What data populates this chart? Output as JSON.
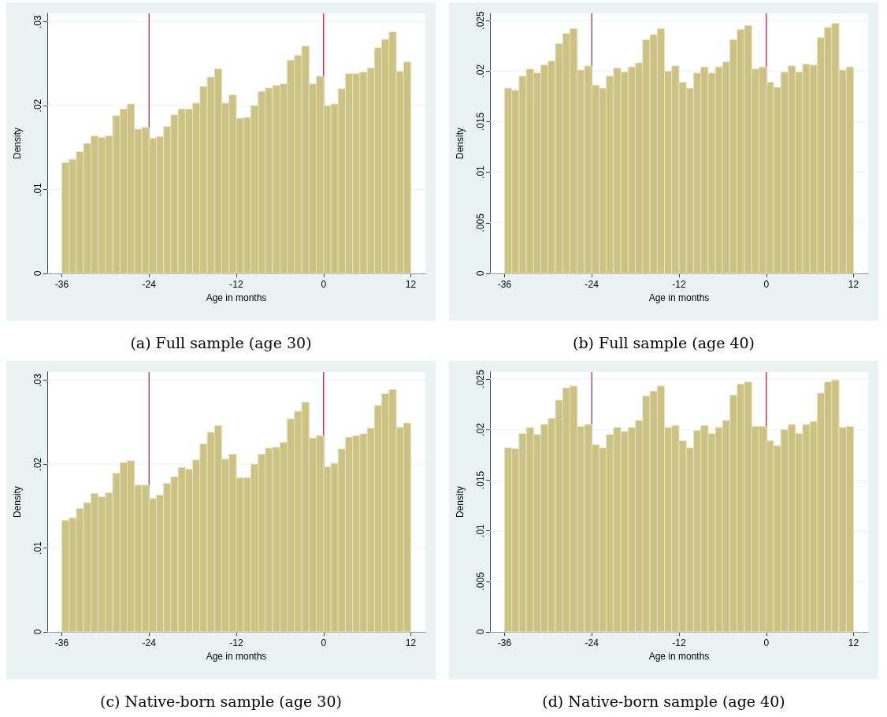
{
  "chart_data": [
    {
      "type": "histogram",
      "title": "(a) Full sample (age 30)",
      "xlabel": "Age in months",
      "ylabel": "Density",
      "color": "#ccc283",
      "grid": "y",
      "bins": [
        -36,
        -35,
        -34,
        -33,
        -32,
        -31,
        -30,
        -29,
        -28,
        -27,
        -26,
        -25,
        -24,
        -23,
        -22,
        -21,
        -20,
        -19,
        -18,
        -17,
        -16,
        -15,
        -14,
        -13,
        -12,
        -11,
        -10,
        -9,
        -8,
        -7,
        -6,
        -5,
        -4,
        -3,
        -2,
        -1,
        0,
        1,
        2,
        3,
        4,
        5,
        6,
        7,
        8,
        9,
        10,
        11,
        12
      ],
      "values": [
        0.0132,
        0.0136,
        0.0145,
        0.0155,
        0.0164,
        0.0162,
        0.0164,
        0.0188,
        0.0196,
        0.0202,
        0.0172,
        0.0174,
        0.0161,
        0.0163,
        0.0175,
        0.0189,
        0.0196,
        0.0196,
        0.0203,
        0.0223,
        0.0234,
        0.0244,
        0.0203,
        0.0213,
        0.0185,
        0.0186,
        0.02,
        0.0217,
        0.0221,
        0.0224,
        0.0226,
        0.0254,
        0.026,
        0.0271,
        0.0226,
        0.0235,
        0.02,
        0.0202,
        0.022,
        0.0238,
        0.0238,
        0.024,
        0.0245,
        0.0269,
        0.0279,
        0.0288,
        0.0241,
        0.0252
      ],
      "xlim": [
        -38,
        14
      ],
      "xticks": [
        -36,
        -24,
        -12,
        0,
        12
      ],
      "ylim": [
        0,
        0.031
      ],
      "yticks": [
        {
          "value": 0,
          "label": "0"
        },
        {
          "value": 0.01,
          "label": ".01"
        },
        {
          "value": 0.02,
          "label": ".02"
        },
        {
          "value": 0.03,
          "label": ".03"
        }
      ],
      "ref_lines": [
        {
          "axis": "x",
          "value": -24,
          "color": "#c8102e"
        },
        {
          "axis": "x",
          "value": 0,
          "color": "#c8102e"
        }
      ]
    },
    {
      "type": "histogram",
      "title": "(b) Full sample (age 40)",
      "xlabel": "Age in months",
      "ylabel": "Density",
      "color": "#ccc283",
      "grid": "y",
      "bins": [
        -36,
        -35,
        -34,
        -33,
        -32,
        -31,
        -30,
        -29,
        -28,
        -27,
        -26,
        -25,
        -24,
        -23,
        -22,
        -21,
        -20,
        -19,
        -18,
        -17,
        -16,
        -15,
        -14,
        -13,
        -12,
        -11,
        -10,
        -9,
        -8,
        -7,
        -6,
        -5,
        -4,
        -3,
        -2,
        -1,
        0,
        1,
        2,
        3,
        4,
        5,
        6,
        7,
        8,
        9,
        10,
        11,
        12
      ],
      "values": [
        0.0183,
        0.0181,
        0.0195,
        0.0202,
        0.0198,
        0.0206,
        0.021,
        0.0227,
        0.0237,
        0.0242,
        0.0201,
        0.0205,
        0.0186,
        0.0183,
        0.0195,
        0.0203,
        0.0199,
        0.0204,
        0.0208,
        0.0231,
        0.0236,
        0.0242,
        0.02,
        0.0205,
        0.0189,
        0.0183,
        0.0198,
        0.0204,
        0.0198,
        0.0204,
        0.0209,
        0.0231,
        0.0241,
        0.0245,
        0.0202,
        0.0204,
        0.0189,
        0.0184,
        0.0199,
        0.0205,
        0.0199,
        0.0207,
        0.0206,
        0.0233,
        0.0243,
        0.0247,
        0.0201,
        0.0204
      ],
      "xlim": [
        -38,
        14
      ],
      "xticks": [
        -36,
        -24,
        -12,
        0,
        12
      ],
      "ylim": [
        0,
        0.0257
      ],
      "yticks": [
        {
          "value": 0,
          "label": "0"
        },
        {
          "value": 0.005,
          "label": ".005"
        },
        {
          "value": 0.01,
          "label": ".01"
        },
        {
          "value": 0.015,
          "label": ".015"
        },
        {
          "value": 0.02,
          "label": ".02"
        },
        {
          "value": 0.025,
          "label": ".025"
        }
      ],
      "ref_lines": [
        {
          "axis": "x",
          "value": -24,
          "color": "#c8102e"
        },
        {
          "axis": "x",
          "value": 0,
          "color": "#c8102e"
        }
      ]
    },
    {
      "type": "histogram",
      "title": "(c) Native-born sample (age 30)",
      "xlabel": "Age in months",
      "ylabel": "Density",
      "color": "#ccc283",
      "grid": "y",
      "bins": [
        -36,
        -35,
        -34,
        -33,
        -32,
        -31,
        -30,
        -29,
        -28,
        -27,
        -26,
        -25,
        -24,
        -23,
        -22,
        -21,
        -20,
        -19,
        -18,
        -17,
        -16,
        -15,
        -14,
        -13,
        -12,
        -11,
        -10,
        -9,
        -8,
        -7,
        -6,
        -5,
        -4,
        -3,
        -2,
        -1,
        0,
        1,
        2,
        3,
        4,
        5,
        6,
        7,
        8,
        9,
        10,
        11,
        12
      ],
      "values": [
        0.0133,
        0.0136,
        0.0147,
        0.0154,
        0.0165,
        0.0161,
        0.0166,
        0.0189,
        0.0202,
        0.0204,
        0.0175,
        0.0175,
        0.0159,
        0.0163,
        0.0177,
        0.0185,
        0.0196,
        0.0194,
        0.0205,
        0.0224,
        0.0238,
        0.0246,
        0.0206,
        0.0212,
        0.0184,
        0.0184,
        0.02,
        0.0212,
        0.0219,
        0.022,
        0.0226,
        0.0254,
        0.0263,
        0.0274,
        0.0231,
        0.0234,
        0.0197,
        0.0201,
        0.0218,
        0.0232,
        0.0234,
        0.0236,
        0.0243,
        0.027,
        0.0284,
        0.0289,
        0.0244,
        0.0249
      ],
      "xlim": [
        -38,
        14
      ],
      "xticks": [
        -36,
        -24,
        -12,
        0,
        12
      ],
      "ylim": [
        0,
        0.031
      ],
      "yticks": [
        {
          "value": 0,
          "label": "0"
        },
        {
          "value": 0.01,
          "label": ".01"
        },
        {
          "value": 0.02,
          "label": ".02"
        },
        {
          "value": 0.03,
          "label": ".03"
        }
      ],
      "ref_lines": [
        {
          "axis": "x",
          "value": -24,
          "color": "#c8102e"
        },
        {
          "axis": "x",
          "value": 0,
          "color": "#c8102e"
        }
      ]
    },
    {
      "type": "histogram",
      "title": "(d) Native-born sample (age 40)",
      "xlabel": "Age in months",
      "ylabel": "Density",
      "color": "#ccc283",
      "grid": "y",
      "bins": [
        -36,
        -35,
        -34,
        -33,
        -32,
        -31,
        -30,
        -29,
        -28,
        -27,
        -26,
        -25,
        -24,
        -23,
        -22,
        -21,
        -20,
        -19,
        -18,
        -17,
        -16,
        -15,
        -14,
        -13,
        -12,
        -11,
        -10,
        -9,
        -8,
        -7,
        -6,
        -5,
        -4,
        -3,
        -2,
        -1,
        0,
        1,
        2,
        3,
        4,
        5,
        6,
        7,
        8,
        9,
        10,
        11,
        12
      ],
      "values": [
        0.0182,
        0.0181,
        0.0196,
        0.0202,
        0.0195,
        0.0205,
        0.0211,
        0.0229,
        0.0241,
        0.0243,
        0.0203,
        0.0205,
        0.0185,
        0.0182,
        0.0195,
        0.0202,
        0.0198,
        0.0202,
        0.0209,
        0.0233,
        0.0238,
        0.0243,
        0.0202,
        0.0204,
        0.0189,
        0.0182,
        0.0199,
        0.0204,
        0.0196,
        0.0202,
        0.0209,
        0.0234,
        0.0245,
        0.0247,
        0.0203,
        0.0203,
        0.0189,
        0.0184,
        0.02,
        0.0205,
        0.0196,
        0.0205,
        0.0208,
        0.0236,
        0.0247,
        0.0249,
        0.0202,
        0.0203
      ],
      "xlim": [
        -38,
        14
      ],
      "xticks": [
        -36,
        -24,
        -12,
        0,
        12
      ],
      "ylim": [
        0,
        0.0257
      ],
      "yticks": [
        {
          "value": 0,
          "label": "0"
        },
        {
          "value": 0.005,
          "label": ".005"
        },
        {
          "value": 0.01,
          "label": ".01"
        },
        {
          "value": 0.015,
          "label": ".015"
        },
        {
          "value": 0.02,
          "label": ".02"
        },
        {
          "value": 0.025,
          "label": ".025"
        }
      ],
      "ref_lines": [
        {
          "axis": "x",
          "value": -24,
          "color": "#c8102e"
        },
        {
          "axis": "x",
          "value": 0,
          "color": "#c8102e"
        }
      ]
    }
  ]
}
